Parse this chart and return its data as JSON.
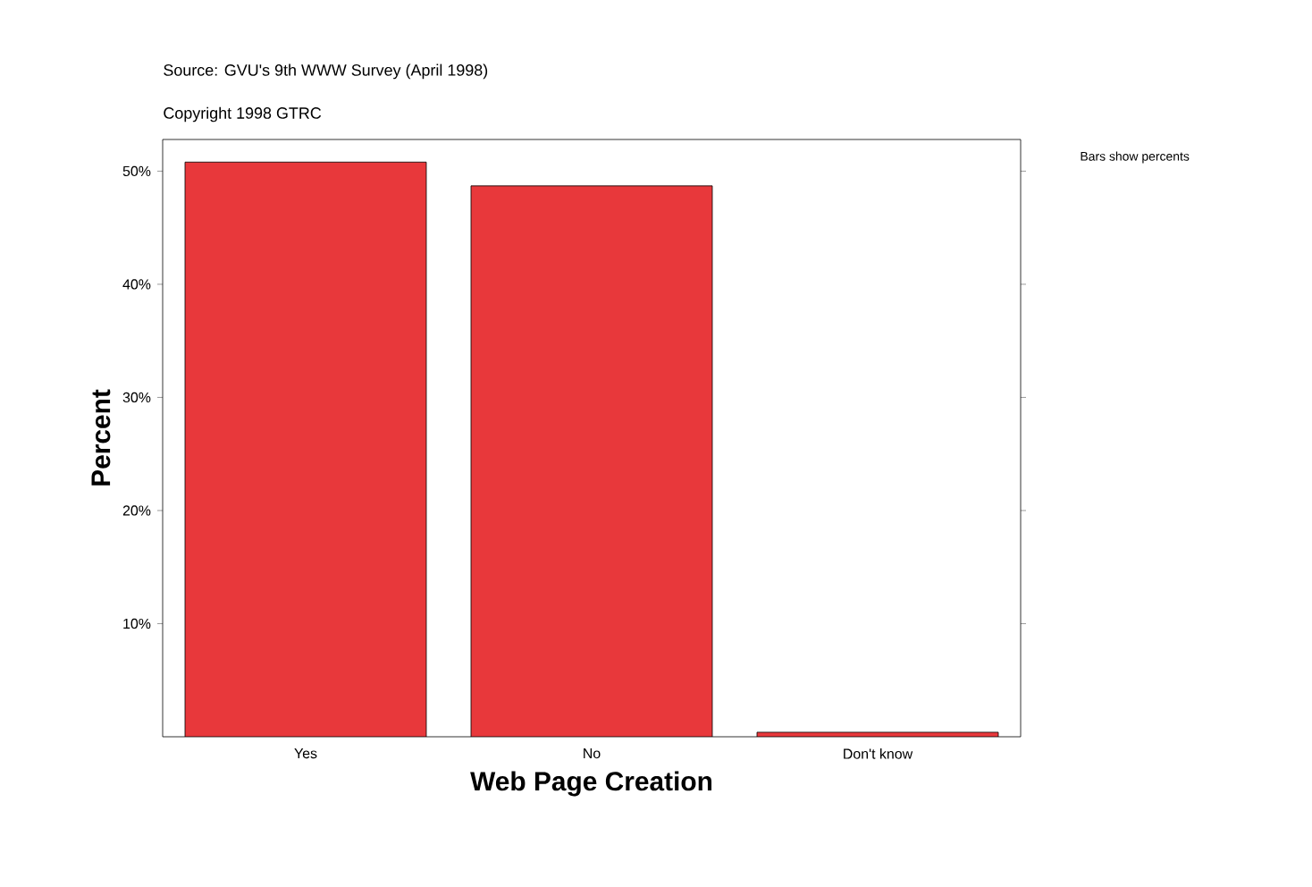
{
  "chart_data": {
    "type": "bar",
    "xlabel": "Web Page Creation",
    "ylabel": "Percent",
    "categories": [
      "Yes",
      "No",
      "Don't know"
    ],
    "values": [
      50.8,
      48.7,
      0.4
    ],
    "color": "#e8383b",
    "ylim": [
      0,
      52.8
    ],
    "yticks": [
      {
        "value": 10,
        "label": "10%"
      },
      {
        "value": 20,
        "label": "20%"
      },
      {
        "value": 30,
        "label": "30%"
      },
      {
        "value": 40,
        "label": "40%"
      },
      {
        "value": 50,
        "label": "50%"
      }
    ],
    "annotations": [
      "Source: GVU's 9th WWW Survey (April 1998)",
      "Copyright 1998 GTRC",
      "Bars show percents"
    ]
  }
}
